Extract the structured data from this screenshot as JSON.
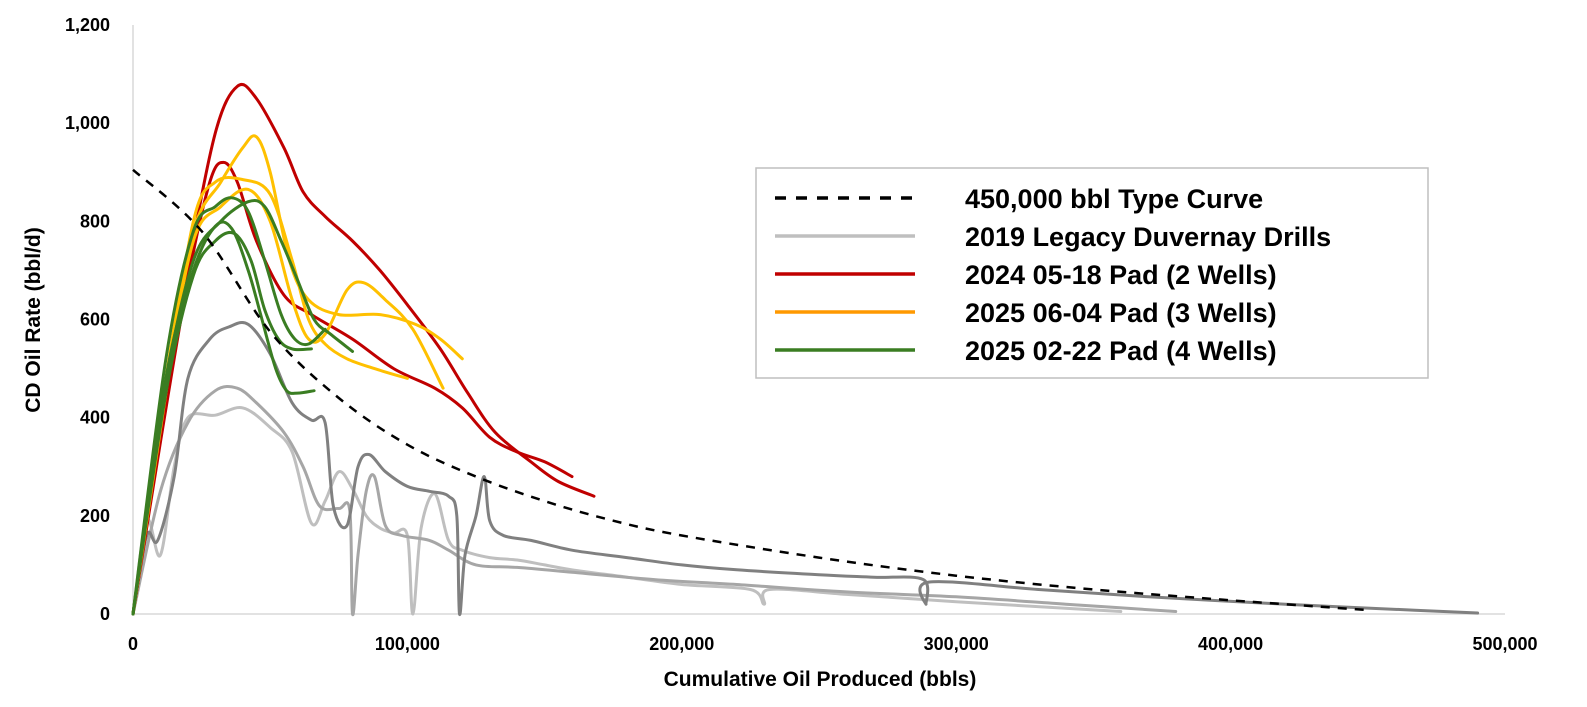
{
  "chart_data": {
    "type": "line",
    "title": "",
    "xlabel": "Cumulative Oil Produced (bbls)",
    "ylabel": "CD Oil Rate (bbl/d)",
    "xlim": [
      0,
      500000
    ],
    "ylim": [
      0,
      1200
    ],
    "x_ticks": [
      "0",
      "100,000",
      "200,000",
      "300,000",
      "400,000",
      "500,000"
    ],
    "y_ticks": [
      "0",
      "200",
      "400",
      "600",
      "800",
      "1,000",
      "1,200"
    ],
    "grid": false,
    "legend_position": "right",
    "colors": {
      "type_curve": "#000000",
      "legacy_light": "#bfbfbf",
      "legacy_mid": "#a6a6a6",
      "legacy_dark": "#808080",
      "pad_2024": "#c00000",
      "pad_2025_06": "#ffc000",
      "pad_2025_06_legend": "#ff9900",
      "pad_2025_02": "#3a7d22"
    },
    "legend": [
      {
        "name": "450,000 bbl Type Curve",
        "color": "#000000",
        "dashed": true
      },
      {
        "name": "2019 Legacy Duvernay Drills",
        "color": "#bfbfbf",
        "dashed": false
      },
      {
        "name": "2024 05-18 Pad (2 Wells)",
        "color": "#c00000",
        "dashed": false
      },
      {
        "name": "2025 06-04 Pad (3 Wells)",
        "color": "#ff9900",
        "dashed": false
      },
      {
        "name": "2025 02-22 Pad (4 Wells)",
        "color": "#3a7d22",
        "dashed": false
      }
    ],
    "series": [
      {
        "group": "2019 Legacy Duvernay Drills",
        "color": "#bfbfbf",
        "dashed": false,
        "points": [
          [
            0,
            0
          ],
          [
            5000,
            190
          ],
          [
            10000,
            120
          ],
          [
            15000,
            300
          ],
          [
            20000,
            400
          ],
          [
            30000,
            405
          ],
          [
            40000,
            420
          ],
          [
            50000,
            380
          ],
          [
            58000,
            330
          ],
          [
            65000,
            185
          ],
          [
            70000,
            230
          ],
          [
            75000,
            290
          ],
          [
            80000,
            255
          ],
          [
            85000,
            200
          ],
          [
            90000,
            175
          ],
          [
            95000,
            165
          ],
          [
            100000,
            160
          ],
          [
            102000,
            0
          ],
          [
            105000,
            175
          ],
          [
            110000,
            245
          ],
          [
            115000,
            150
          ],
          [
            120000,
            130
          ],
          [
            130000,
            115
          ],
          [
            140000,
            110
          ],
          [
            150000,
            100
          ],
          [
            160000,
            90
          ],
          [
            180000,
            75
          ],
          [
            200000,
            60
          ],
          [
            225000,
            50
          ],
          [
            230000,
            20
          ],
          [
            232000,
            50
          ],
          [
            260000,
            40
          ],
          [
            300000,
            25
          ],
          [
            360000,
            5
          ]
        ]
      },
      {
        "group": "2019 Legacy Duvernay Drills",
        "color": "#a6a6a6",
        "dashed": false,
        "points": [
          [
            0,
            0
          ],
          [
            10000,
            250
          ],
          [
            20000,
            390
          ],
          [
            30000,
            455
          ],
          [
            38000,
            460
          ],
          [
            45000,
            430
          ],
          [
            55000,
            370
          ],
          [
            62000,
            300
          ],
          [
            68000,
            220
          ],
          [
            75000,
            215
          ],
          [
            79000,
            210
          ],
          [
            80000,
            0
          ],
          [
            82000,
            120
          ],
          [
            85000,
            250
          ],
          [
            88000,
            280
          ],
          [
            92000,
            180
          ],
          [
            98000,
            160
          ],
          [
            108000,
            150
          ],
          [
            115000,
            130
          ],
          [
            125000,
            100
          ],
          [
            140000,
            95
          ],
          [
            160000,
            85
          ],
          [
            190000,
            70
          ],
          [
            220000,
            60
          ],
          [
            260000,
            45
          ],
          [
            300000,
            35
          ],
          [
            340000,
            20
          ],
          [
            380000,
            5
          ]
        ]
      },
      {
        "group": "2019 Legacy Duvernay Drills",
        "color": "#808080",
        "dashed": false,
        "points": [
          [
            0,
            0
          ],
          [
            5000,
            160
          ],
          [
            9000,
            150
          ],
          [
            15000,
            280
          ],
          [
            20000,
            480
          ],
          [
            28000,
            560
          ],
          [
            35000,
            585
          ],
          [
            42000,
            590
          ],
          [
            50000,
            530
          ],
          [
            58000,
            430
          ],
          [
            65000,
            395
          ],
          [
            70000,
            390
          ],
          [
            73000,
            220
          ],
          [
            78000,
            180
          ],
          [
            82000,
            300
          ],
          [
            86000,
            325
          ],
          [
            92000,
            290
          ],
          [
            100000,
            260
          ],
          [
            108000,
            250
          ],
          [
            115000,
            240
          ],
          [
            118000,
            200
          ],
          [
            119000,
            0
          ],
          [
            121000,
            120
          ],
          [
            125000,
            200
          ],
          [
            128000,
            280
          ],
          [
            130000,
            190
          ],
          [
            135000,
            160
          ],
          [
            145000,
            150
          ],
          [
            160000,
            130
          ],
          [
            180000,
            115
          ],
          [
            200000,
            100
          ],
          [
            220000,
            90
          ],
          [
            250000,
            80
          ],
          [
            270000,
            75
          ],
          [
            288000,
            70
          ],
          [
            289000,
            20
          ],
          [
            290000,
            65
          ],
          [
            330000,
            50
          ],
          [
            370000,
            35
          ],
          [
            420000,
            20
          ],
          [
            450000,
            12
          ],
          [
            490000,
            2
          ]
        ]
      },
      {
        "group": "450,000 bbl Type Curve",
        "color": "#000000",
        "dashed": true,
        "points": [
          [
            0,
            905
          ],
          [
            25000,
            780
          ],
          [
            50000,
            575
          ],
          [
            75000,
            440
          ],
          [
            100000,
            345
          ],
          [
            125000,
            280
          ],
          [
            150000,
            230
          ],
          [
            175000,
            190
          ],
          [
            200000,
            160
          ],
          [
            250000,
            115
          ],
          [
            300000,
            78
          ],
          [
            350000,
            50
          ],
          [
            400000,
            28
          ],
          [
            450000,
            8
          ]
        ]
      },
      {
        "group": "2024 05-18 Pad (2 Wells)",
        "color": "#c00000",
        "dashed": false,
        "points": [
          [
            0,
            0
          ],
          [
            10000,
            350
          ],
          [
            20000,
            680
          ],
          [
            28000,
            880
          ],
          [
            33000,
            920
          ],
          [
            38000,
            880
          ],
          [
            45000,
            760
          ],
          [
            55000,
            650
          ],
          [
            65000,
            610
          ],
          [
            80000,
            560
          ],
          [
            95000,
            500
          ],
          [
            110000,
            460
          ],
          [
            120000,
            420
          ],
          [
            130000,
            360
          ],
          [
            140000,
            330
          ],
          [
            150000,
            310
          ],
          [
            160000,
            280
          ]
        ]
      },
      {
        "group": "2024 05-18 Pad (2 Wells)",
        "color": "#c00000",
        "dashed": false,
        "points": [
          [
            0,
            0
          ],
          [
            10000,
            360
          ],
          [
            20000,
            700
          ],
          [
            30000,
            980
          ],
          [
            38000,
            1075
          ],
          [
            45000,
            1050
          ],
          [
            55000,
            950
          ],
          [
            62000,
            860
          ],
          [
            70000,
            810
          ],
          [
            80000,
            760
          ],
          [
            90000,
            700
          ],
          [
            100000,
            630
          ],
          [
            112000,
            540
          ],
          [
            122000,
            450
          ],
          [
            132000,
            370
          ],
          [
            145000,
            310
          ],
          [
            155000,
            270
          ],
          [
            168000,
            240
          ]
        ]
      },
      {
        "group": "2025 06-04 Pad (3 Wells)",
        "color": "#ffc000",
        "dashed": false,
        "points": [
          [
            0,
            0
          ],
          [
            12000,
            450
          ],
          [
            22000,
            800
          ],
          [
            30000,
            880
          ],
          [
            40000,
            885
          ],
          [
            50000,
            855
          ],
          [
            58000,
            720
          ],
          [
            64000,
            600
          ],
          [
            70000,
            550
          ],
          [
            78000,
            520
          ],
          [
            88000,
            500
          ],
          [
            100000,
            480
          ]
        ]
      },
      {
        "group": "2025 06-04 Pad (3 Wells)",
        "color": "#ffc000",
        "dashed": false,
        "points": [
          [
            0,
            0
          ],
          [
            12000,
            460
          ],
          [
            22000,
            760
          ],
          [
            32000,
            830
          ],
          [
            42000,
            865
          ],
          [
            50000,
            800
          ],
          [
            58000,
            640
          ],
          [
            64000,
            560
          ],
          [
            70000,
            570
          ],
          [
            78000,
            660
          ],
          [
            84000,
            675
          ],
          [
            92000,
            640
          ],
          [
            102000,
            580
          ],
          [
            113000,
            460
          ]
        ]
      },
      {
        "group": "2025 06-04 Pad (3 Wells)",
        "color": "#ffc000",
        "dashed": false,
        "points": [
          [
            0,
            0
          ],
          [
            12000,
            480
          ],
          [
            22000,
            780
          ],
          [
            32000,
            880
          ],
          [
            40000,
            950
          ],
          [
            45000,
            972
          ],
          [
            50000,
            900
          ],
          [
            57000,
            720
          ],
          [
            64000,
            640
          ],
          [
            75000,
            610
          ],
          [
            90000,
            610
          ],
          [
            103000,
            590
          ],
          [
            112000,
            560
          ],
          [
            120000,
            520
          ]
        ]
      },
      {
        "group": "2025 02-22 Pad (4 Wells)",
        "color": "#3a7d22",
        "dashed": false,
        "points": [
          [
            0,
            0
          ],
          [
            12000,
            480
          ],
          [
            22000,
            700
          ],
          [
            30000,
            790
          ],
          [
            36000,
            785
          ],
          [
            42000,
            700
          ],
          [
            47000,
            600
          ],
          [
            52000,
            500
          ],
          [
            56000,
            455
          ],
          [
            60000,
            450
          ],
          [
            66000,
            455
          ]
        ]
      },
      {
        "group": "2025 02-22 Pad (4 Wells)",
        "color": "#3a7d22",
        "dashed": false,
        "points": [
          [
            0,
            0
          ],
          [
            12000,
            450
          ],
          [
            22000,
            690
          ],
          [
            30000,
            760
          ],
          [
            37000,
            775
          ],
          [
            43000,
            720
          ],
          [
            48000,
            620
          ],
          [
            53000,
            560
          ],
          [
            58000,
            540
          ],
          [
            65000,
            540
          ]
        ]
      },
      {
        "group": "2025 02-22 Pad (4 Wells)",
        "color": "#3a7d22",
        "dashed": false,
        "points": [
          [
            0,
            0
          ],
          [
            12000,
            520
          ],
          [
            22000,
            780
          ],
          [
            30000,
            830
          ],
          [
            36000,
            848
          ],
          [
            42000,
            820
          ],
          [
            48000,
            720
          ],
          [
            54000,
            610
          ],
          [
            59000,
            560
          ],
          [
            64000,
            550
          ],
          [
            70000,
            580
          ]
        ]
      },
      {
        "group": "2025 02-22 Pad (4 Wells)",
        "color": "#3a7d22",
        "dashed": false,
        "points": [
          [
            0,
            0
          ],
          [
            12000,
            470
          ],
          [
            22000,
            720
          ],
          [
            32000,
            800
          ],
          [
            42000,
            840
          ],
          [
            48000,
            830
          ],
          [
            54000,
            760
          ],
          [
            60000,
            680
          ],
          [
            66000,
            600
          ],
          [
            72000,
            570
          ],
          [
            80000,
            535
          ]
        ]
      }
    ]
  }
}
